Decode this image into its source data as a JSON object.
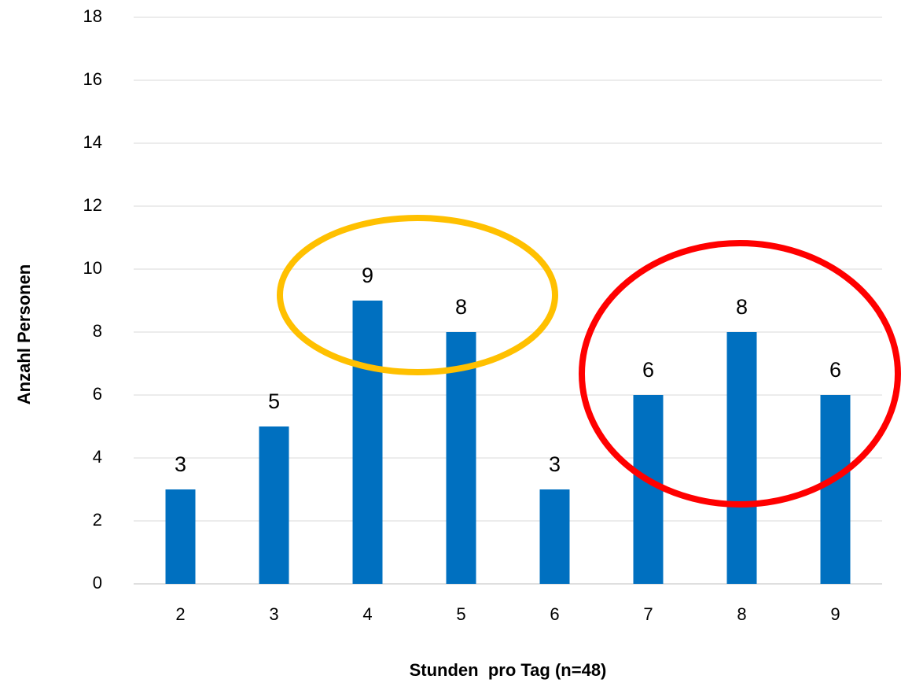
{
  "chart_data": {
    "type": "bar",
    "x_label": "Stunden  pro Tag (n=48)",
    "y_label": "Anzahl Personen",
    "categories": [
      "2",
      "3",
      "4",
      "5",
      "6",
      "7",
      "8",
      "9"
    ],
    "values": [
      3,
      5,
      9,
      8,
      3,
      6,
      8,
      6
    ],
    "color": "#0070c0",
    "ylim": [
      0,
      18
    ],
    "yticks": [
      0,
      2,
      4,
      6,
      8,
      10,
      12,
      14,
      16,
      18
    ],
    "grid": true
  }
}
